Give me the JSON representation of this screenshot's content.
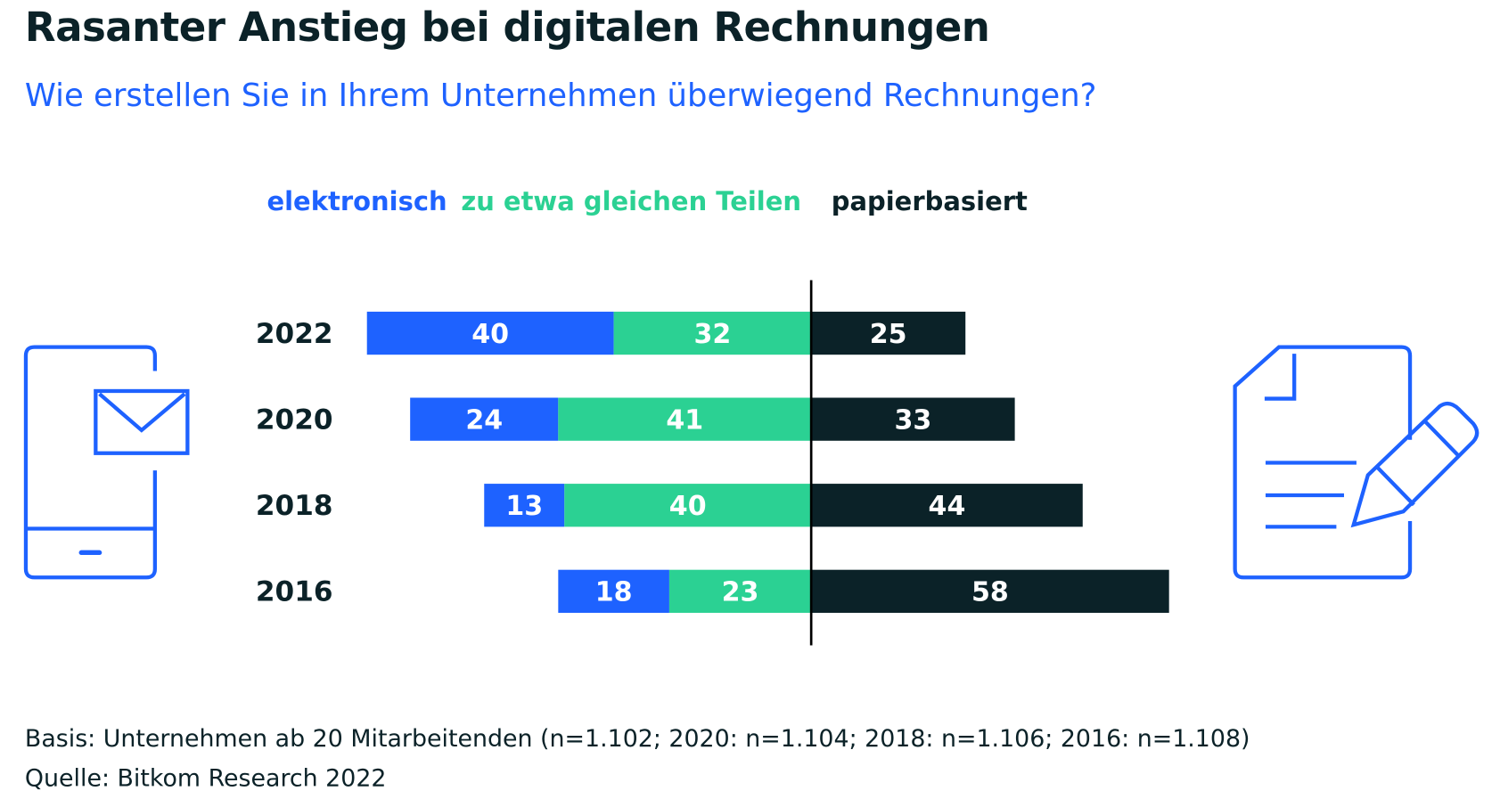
{
  "title": "Rasanter Anstieg bei digitalen Rechnungen",
  "subtitle": "Wie erstellen Sie in Ihrem Unternehmen überwiegend Rechnungen?",
  "footer": {
    "basis": "Basis: Unternehmen ab 20 Mitarbeitenden (n=1.102; 2020: n=1.104; 2018: n=1.106; 2016: n=1.108)",
    "source": "Quelle: Bitkom Research 2022"
  },
  "icons": {
    "left": "smartphone-mail-icon",
    "right": "document-pen-icon"
  },
  "chart_data": {
    "type": "bar",
    "orientation": "horizontal",
    "stacked": "diverging",
    "categories": [
      "2022",
      "2020",
      "2018",
      "2016"
    ],
    "series": [
      {
        "name": "elektronisch",
        "color": "#1e62ff",
        "side": "left",
        "values": [
          40,
          24,
          13,
          18
        ]
      },
      {
        "name": "zu etwa gleichen Teilen",
        "color": "#2bd193",
        "side": "left",
        "values": [
          32,
          41,
          40,
          23
        ]
      },
      {
        "name": "papierbasiert",
        "color": "#0b2228",
        "side": "right",
        "values": [
          25,
          33,
          44,
          58
        ]
      }
    ],
    "legend": "top",
    "grid": false
  }
}
